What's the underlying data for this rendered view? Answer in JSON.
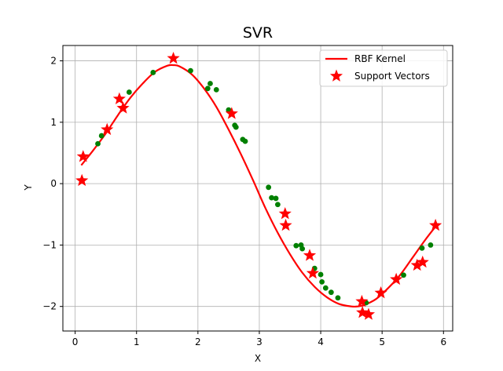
{
  "chart_data": {
    "type": "scatter",
    "title": "SVR",
    "xlabel": "X",
    "ylabel": "Y",
    "xlim": [
      -0.2,
      6.15
    ],
    "ylim": [
      -2.4,
      2.25
    ],
    "xticks": [
      0,
      1,
      2,
      3,
      4,
      5,
      6
    ],
    "yticks": [
      -2,
      -1,
      0,
      1,
      2
    ],
    "xtick_labels": [
      "0",
      "1",
      "2",
      "3",
      "4",
      "5",
      "6"
    ],
    "ytick_labels": [
      "−2",
      "−1",
      "0",
      "1",
      "2"
    ],
    "grid": true,
    "legend_position": "top-right",
    "colors": {
      "line": "#ff0000",
      "support": "#ff0000",
      "points": "#008000"
    },
    "series": [
      {
        "name": "RBF Kernel",
        "kind": "line",
        "x": [
          0.1,
          0.3,
          0.5,
          0.7,
          0.9,
          1.1,
          1.3,
          1.5,
          1.6,
          1.7,
          1.9,
          2.1,
          2.3,
          2.5,
          2.7,
          2.9,
          3.1,
          3.3,
          3.5,
          3.7,
          3.9,
          4.1,
          4.3,
          4.5,
          4.6,
          4.7,
          4.9,
          5.1,
          5.3,
          5.5,
          5.7,
          5.87
        ],
        "y": [
          0.3,
          0.55,
          0.82,
          1.12,
          1.4,
          1.63,
          1.82,
          1.92,
          1.93,
          1.91,
          1.78,
          1.55,
          1.25,
          0.88,
          0.48,
          0.05,
          -0.4,
          -0.8,
          -1.15,
          -1.45,
          -1.68,
          -1.85,
          -1.96,
          -2.0,
          -2.0,
          -1.98,
          -1.88,
          -1.7,
          -1.48,
          -1.2,
          -0.92,
          -0.7
        ]
      },
      {
        "name": "Support Vectors",
        "kind": "star",
        "x": [
          0.11,
          0.13,
          0.52,
          0.72,
          0.78,
          1.6,
          2.55,
          3.42,
          3.43,
          3.82,
          3.87,
          4.67,
          4.68,
          4.78,
          4.98,
          5.23,
          5.57,
          5.66,
          5.87
        ],
        "y": [
          0.05,
          0.44,
          0.88,
          1.38,
          1.23,
          2.04,
          1.14,
          -0.49,
          -0.68,
          -1.17,
          -1.46,
          -1.92,
          -2.1,
          -2.13,
          -1.78,
          -1.56,
          -1.33,
          -1.28,
          -0.68
        ]
      },
      {
        "name": "",
        "kind": "dot",
        "x": [
          0.37,
          0.43,
          0.88,
          1.27,
          1.88,
          2.16,
          2.2,
          2.3,
          2.5,
          2.6,
          2.62,
          2.73,
          2.77,
          3.15,
          3.2,
          3.27,
          3.3,
          3.6,
          3.68,
          3.7,
          3.9,
          4.0,
          4.02,
          4.08,
          4.17,
          4.28,
          4.74,
          5.35,
          5.65,
          5.79
        ],
        "y": [
          0.65,
          0.78,
          1.49,
          1.81,
          1.84,
          1.55,
          1.63,
          1.53,
          1.2,
          0.95,
          0.92,
          0.72,
          0.69,
          -0.06,
          -0.23,
          -0.24,
          -0.34,
          -1.01,
          -1.0,
          -1.06,
          -1.38,
          -1.48,
          -1.6,
          -1.7,
          -1.77,
          -1.86,
          -1.94,
          -1.49,
          -1.05,
          -1.0
        ]
      }
    ]
  }
}
